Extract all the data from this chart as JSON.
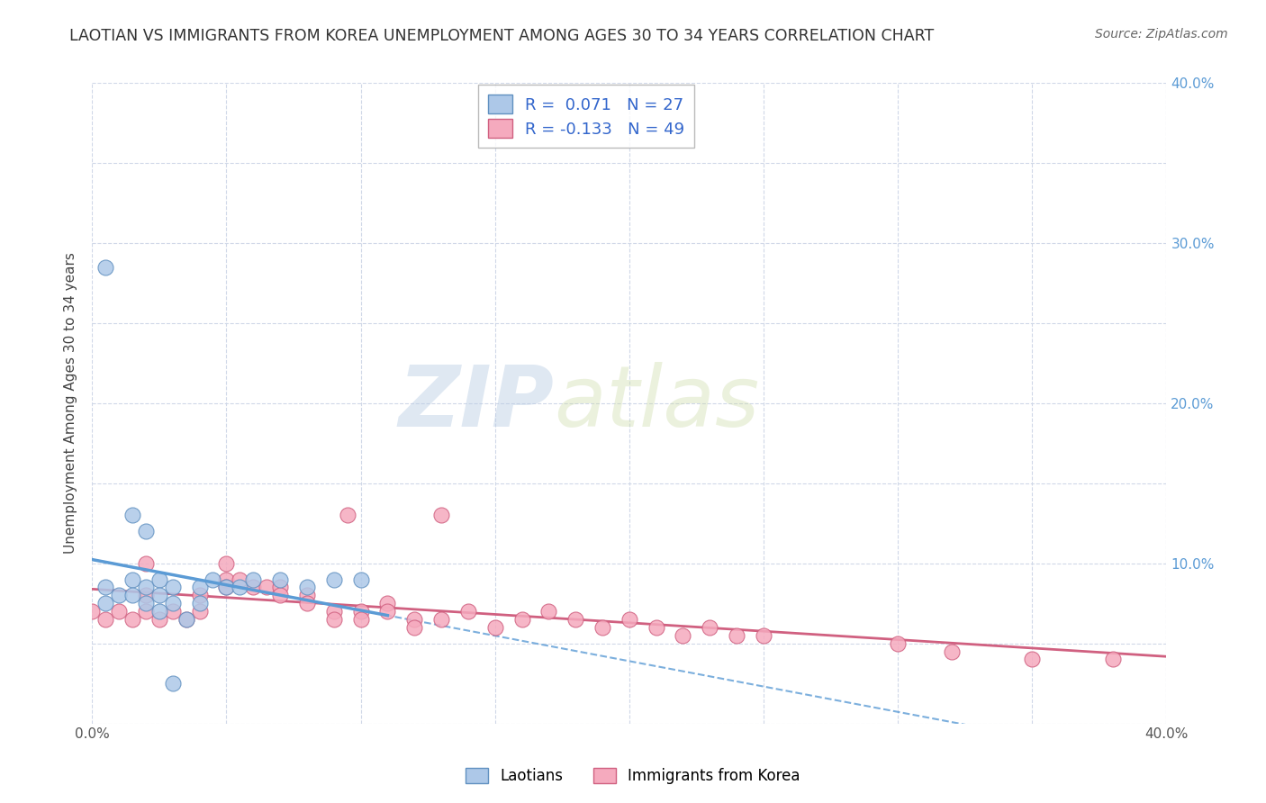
{
  "title": "LAOTIAN VS IMMIGRANTS FROM KOREA UNEMPLOYMENT AMONG AGES 30 TO 34 YEARS CORRELATION CHART",
  "source": "Source: ZipAtlas.com",
  "ylabel": "Unemployment Among Ages 30 to 34 years",
  "xlim": [
    0.0,
    0.4
  ],
  "ylim": [
    0.0,
    0.4
  ],
  "x_ticks": [
    0.0,
    0.05,
    0.1,
    0.15,
    0.2,
    0.25,
    0.3,
    0.35,
    0.4
  ],
  "y_ticks": [
    0.0,
    0.05,
    0.1,
    0.15,
    0.2,
    0.25,
    0.3,
    0.35,
    0.4
  ],
  "laotian_color": "#adc8e8",
  "korea_color": "#f5aabe",
  "laotian_edge_color": "#6090c0",
  "korea_edge_color": "#d06080",
  "laotian_R": 0.071,
  "laotian_N": 27,
  "korea_R": -0.133,
  "korea_N": 49,
  "laotian_x": [
    0.005,
    0.005,
    0.01,
    0.015,
    0.015,
    0.02,
    0.02,
    0.025,
    0.025,
    0.025,
    0.03,
    0.03,
    0.035,
    0.04,
    0.04,
    0.045,
    0.05,
    0.055,
    0.06,
    0.07,
    0.08,
    0.09,
    0.1,
    0.005,
    0.015,
    0.02,
    0.03
  ],
  "laotian_y": [
    0.075,
    0.085,
    0.08,
    0.09,
    0.08,
    0.085,
    0.075,
    0.09,
    0.08,
    0.07,
    0.085,
    0.075,
    0.065,
    0.085,
    0.075,
    0.09,
    0.085,
    0.085,
    0.09,
    0.09,
    0.085,
    0.09,
    0.09,
    0.285,
    0.13,
    0.12,
    0.025
  ],
  "korea_x": [
    0.0,
    0.005,
    0.01,
    0.015,
    0.02,
    0.02,
    0.025,
    0.03,
    0.035,
    0.04,
    0.04,
    0.05,
    0.05,
    0.055,
    0.06,
    0.065,
    0.07,
    0.07,
    0.08,
    0.08,
    0.09,
    0.09,
    0.1,
    0.1,
    0.11,
    0.11,
    0.12,
    0.12,
    0.13,
    0.14,
    0.15,
    0.16,
    0.17,
    0.18,
    0.19,
    0.2,
    0.21,
    0.22,
    0.23,
    0.24,
    0.25,
    0.3,
    0.32,
    0.35,
    0.38,
    0.02,
    0.05,
    0.095,
    0.13
  ],
  "korea_y": [
    0.07,
    0.065,
    0.07,
    0.065,
    0.08,
    0.07,
    0.065,
    0.07,
    0.065,
    0.08,
    0.07,
    0.09,
    0.085,
    0.09,
    0.085,
    0.085,
    0.085,
    0.08,
    0.08,
    0.075,
    0.07,
    0.065,
    0.07,
    0.065,
    0.075,
    0.07,
    0.065,
    0.06,
    0.065,
    0.07,
    0.06,
    0.065,
    0.07,
    0.065,
    0.06,
    0.065,
    0.06,
    0.055,
    0.06,
    0.055,
    0.055,
    0.05,
    0.045,
    0.04,
    0.04,
    0.1,
    0.1,
    0.13,
    0.13
  ],
  "watermark_zip": "ZIP",
  "watermark_atlas": "atlas",
  "background_color": "#ffffff",
  "grid_color": "#d0d8e8",
  "trend_laotian_color": "#5b9bd5",
  "trend_korea_color": "#d06080",
  "legend_laotian_label": "Laotians",
  "legend_korea_label": "Immigrants from Korea",
  "laotian_trend_start_x": 0.0,
  "laotian_trend_end_x": 0.11,
  "laotian_trend_dashed_start_x": 0.0,
  "laotian_trend_dashed_end_x": 0.4
}
